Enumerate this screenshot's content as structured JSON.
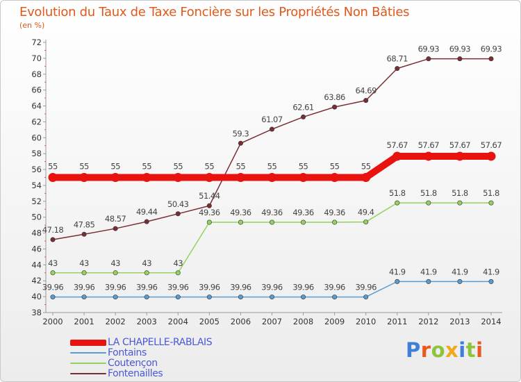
{
  "chart_data": {
    "type": "line",
    "title": "Evolution du Taux de Taxe Foncière sur les Propriétés Non Bâties",
    "ylabel": "(en %)",
    "xlabel": "",
    "ylim": [
      38,
      72
    ],
    "yticks": [
      38,
      40,
      42,
      44,
      46,
      48,
      50,
      52,
      54,
      56,
      58,
      60,
      62,
      64,
      66,
      68,
      70,
      72
    ],
    "categories": [
      "2000",
      "2001",
      "2002",
      "2003",
      "2004",
      "2005",
      "2006",
      "2007",
      "2008",
      "2009",
      "2010",
      "2011",
      "2012",
      "2013",
      "2014"
    ],
    "series": [
      {
        "name": "LA CHAPELLE-RABLAIS",
        "color": "#e8120f",
        "values": [
          55,
          55,
          55,
          55,
          55,
          55,
          55,
          55,
          55,
          55,
          55,
          57.67,
          57.67,
          57.67,
          57.67
        ],
        "labels": [
          "55",
          "55",
          "55",
          "55",
          "55",
          "55",
          "55",
          "55",
          "55",
          "55",
          "55",
          "57.67",
          "57.67",
          "57.67",
          "57.67"
        ]
      },
      {
        "name": "Fontains",
        "color": "#5a9bd0",
        "values": [
          39.96,
          39.96,
          39.96,
          39.96,
          39.96,
          39.96,
          39.96,
          39.96,
          39.96,
          39.96,
          39.96,
          41.9,
          41.9,
          41.9,
          41.9
        ],
        "labels": [
          "39.96",
          "39.96",
          "39.96",
          "39.96",
          "39.96",
          "39.96",
          "39.96",
          "39.96",
          "39.96",
          "39.96",
          "39.96",
          "41.9",
          "41.9",
          "41.9",
          "41.9"
        ]
      },
      {
        "name": "Coutençon",
        "color": "#94d25f",
        "values": [
          43,
          43,
          43,
          43,
          43,
          49.36,
          49.36,
          49.36,
          49.36,
          49.36,
          49.4,
          51.8,
          51.8,
          51.8,
          51.8
        ],
        "labels": [
          "43",
          "43",
          "43",
          "43",
          "43",
          "49.36",
          "49.36",
          "49.36",
          "49.36",
          "49.36",
          "49.4",
          "51.8",
          "51.8",
          "51.8",
          "51.8"
        ]
      },
      {
        "name": "Fontenailles",
        "color": "#7a2e34",
        "values": [
          47.18,
          47.85,
          48.57,
          49.44,
          50.43,
          51.44,
          59.3,
          61.07,
          62.61,
          63.86,
          64.69,
          68.71,
          69.93,
          69.93,
          69.93
        ],
        "labels": [
          "47.18",
          "47.85",
          "48.57",
          "49.44",
          "50.43",
          "51.44",
          "59.3",
          "61.07",
          "62.61",
          "63.86",
          "64.69",
          "68.71",
          "69.93",
          "69.93",
          "69.93"
        ]
      }
    ],
    "legend_position": "bottom-left",
    "grid": false
  },
  "branding": {
    "logo_text": "Proxiti",
    "letter_colors": [
      "#3f7fd8",
      "#e85a1e",
      "#8cc43c",
      "#f0a81c",
      "#3f7fd8",
      "#8cc43c",
      "#e85a1e"
    ]
  }
}
